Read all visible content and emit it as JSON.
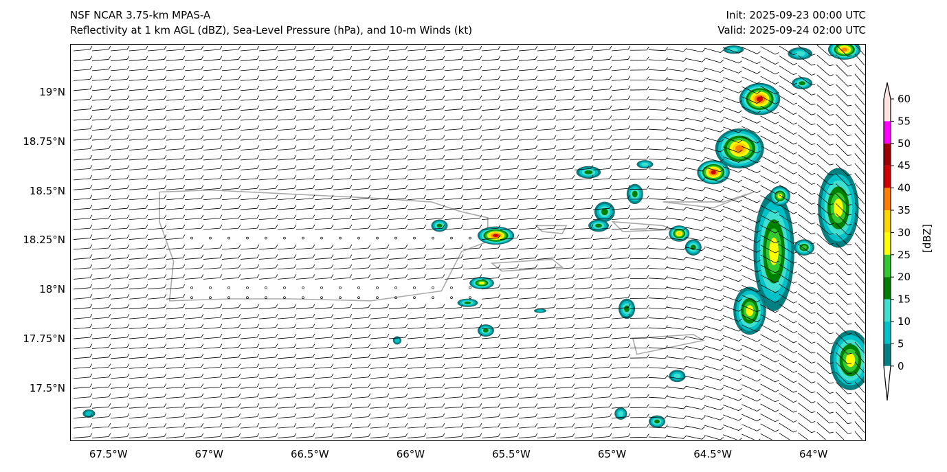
{
  "header": {
    "title": "NSF NCAR 3.75-km MPAS-A",
    "subtitle": "Reflectivity at 1 km AGL (dBZ), Sea-Level Pressure (hPa), and 10-m Winds (kt)",
    "init": "Init: 2025-09-23 00:00 UTC",
    "valid": "Valid: 2025-09-24 02:00 UTC"
  },
  "map": {
    "lon_range": [
      -67.69,
      -63.75
    ],
    "lat_range": [
      17.248,
      19.245
    ],
    "lat_ticks": [
      {
        "v": 19,
        "label": "19°N"
      },
      {
        "v": 18.75,
        "label": "18.75°N"
      },
      {
        "v": 18.5,
        "label": "18.5°N"
      },
      {
        "v": 18.25,
        "label": "18.25°N"
      },
      {
        "v": 18,
        "label": "18°N"
      },
      {
        "v": 17.75,
        "label": "17.75°N"
      },
      {
        "v": 17.5,
        "label": "17.5°N"
      }
    ],
    "lon_ticks": [
      {
        "v": -67.5,
        "label": "67.5°W"
      },
      {
        "v": -67,
        "label": "67°W"
      },
      {
        "v": -66.5,
        "label": "66.5°W"
      },
      {
        "v": -66,
        "label": "66°W"
      },
      {
        "v": -65.5,
        "label": "65.5°W"
      },
      {
        "v": -65,
        "label": "65°W"
      },
      {
        "v": -64.5,
        "label": "64.5°W"
      },
      {
        "v": -64,
        "label": "64°W"
      }
    ],
    "cells": [
      {
        "lon": -65.58,
        "lat": 18.28,
        "rx": 0.09,
        "ry": 0.045,
        "max": 45
      },
      {
        "lon": -65.65,
        "lat": 18.04,
        "rx": 0.06,
        "ry": 0.03,
        "max": 30
      },
      {
        "lon": -65.72,
        "lat": 17.94,
        "rx": 0.05,
        "ry": 0.02,
        "max": 20
      },
      {
        "lon": -65.63,
        "lat": 17.8,
        "rx": 0.04,
        "ry": 0.03,
        "max": 20
      },
      {
        "lon": -65.86,
        "lat": 18.33,
        "rx": 0.04,
        "ry": 0.03,
        "max": 20
      },
      {
        "lon": -65.12,
        "lat": 18.6,
        "rx": 0.06,
        "ry": 0.03,
        "max": 20
      },
      {
        "lon": -65.04,
        "lat": 18.4,
        "rx": 0.05,
        "ry": 0.05,
        "max": 20
      },
      {
        "lon": -65.07,
        "lat": 18.33,
        "rx": 0.05,
        "ry": 0.03,
        "max": 20
      },
      {
        "lon": -64.89,
        "lat": 18.49,
        "rx": 0.04,
        "ry": 0.05,
        "max": 20
      },
      {
        "lon": -64.84,
        "lat": 18.64,
        "rx": 0.04,
        "ry": 0.02,
        "max": 15
      },
      {
        "lon": -64.67,
        "lat": 18.29,
        "rx": 0.05,
        "ry": 0.04,
        "max": 35
      },
      {
        "lon": -64.6,
        "lat": 18.22,
        "rx": 0.04,
        "ry": 0.04,
        "max": 20
      },
      {
        "lon": -64.93,
        "lat": 17.91,
        "rx": 0.04,
        "ry": 0.05,
        "max": 20
      },
      {
        "lon": -64.5,
        "lat": 18.6,
        "rx": 0.08,
        "ry": 0.06,
        "max": 45
      },
      {
        "lon": -64.37,
        "lat": 18.72,
        "rx": 0.12,
        "ry": 0.1,
        "max": 40
      },
      {
        "lon": -64.27,
        "lat": 18.97,
        "rx": 0.1,
        "ry": 0.08,
        "max": 45
      },
      {
        "lon": -64.06,
        "lat": 19.05,
        "rx": 0.05,
        "ry": 0.03,
        "max": 20
      },
      {
        "lon": -64.2,
        "lat": 18.2,
        "rx": 0.1,
        "ry": 0.3,
        "max": 30
      },
      {
        "lon": -64.17,
        "lat": 18.48,
        "rx": 0.05,
        "ry": 0.05,
        "max": 30
      },
      {
        "lon": -64.32,
        "lat": 17.9,
        "rx": 0.08,
        "ry": 0.12,
        "max": 30
      },
      {
        "lon": -64.05,
        "lat": 18.22,
        "rx": 0.05,
        "ry": 0.04,
        "max": 25
      },
      {
        "lon": -63.88,
        "lat": 18.42,
        "rx": 0.1,
        "ry": 0.2,
        "max": 30
      },
      {
        "lon": -63.82,
        "lat": 17.65,
        "rx": 0.1,
        "ry": 0.15,
        "max": 30
      },
      {
        "lon": -64.07,
        "lat": 19.2,
        "rx": 0.06,
        "ry": 0.03,
        "max": 15
      },
      {
        "lon": -63.85,
        "lat": 19.22,
        "rx": 0.08,
        "ry": 0.05,
        "max": 40
      },
      {
        "lon": -64.4,
        "lat": 19.22,
        "rx": 0.05,
        "ry": 0.02,
        "max": 15
      },
      {
        "lon": -64.68,
        "lat": 17.57,
        "rx": 0.04,
        "ry": 0.03,
        "max": 15
      },
      {
        "lon": -64.78,
        "lat": 17.34,
        "rx": 0.04,
        "ry": 0.03,
        "max": 20
      },
      {
        "lon": -64.96,
        "lat": 17.38,
        "rx": 0.03,
        "ry": 0.03,
        "max": 15
      },
      {
        "lon": -67.6,
        "lat": 17.38,
        "rx": 0.03,
        "ry": 0.02,
        "max": 10
      },
      {
        "lon": -66.07,
        "lat": 17.75,
        "rx": 0.02,
        "ry": 0.02,
        "max": 10
      },
      {
        "lon": -65.36,
        "lat": 17.9,
        "rx": 0.03,
        "ry": 0.01,
        "max": 10
      }
    ]
  },
  "colorbar": {
    "label": "[dBZ]",
    "levels": [
      "0",
      "5",
      "10",
      "15",
      "20",
      "25",
      "30",
      "35",
      "40",
      "45",
      "50",
      "55",
      "60"
    ],
    "colors": [
      "#008080",
      "#00c0c8",
      "#40e0d0",
      "#008000",
      "#32c832",
      "#ffff00",
      "#ffd700",
      "#ff8000",
      "#d00000",
      "#a00000",
      "#ff00ff",
      "#ffe4e1"
    ]
  }
}
